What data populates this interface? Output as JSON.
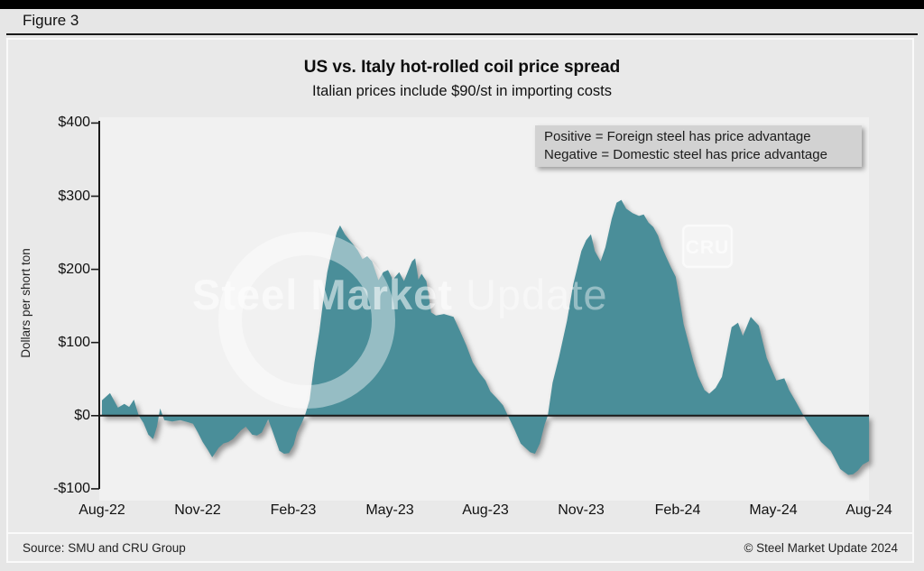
{
  "header": {
    "figure_label": "Figure 3"
  },
  "chart_data": {
    "type": "area",
    "title": "US vs. Italy hot-rolled coil price spread",
    "subtitle": "Italian prices include $90/st in importing costs",
    "ylabel": "Dollars per short ton",
    "ylim": [
      -100,
      400
    ],
    "baseline": 0,
    "grid": false,
    "fill_color": "#4a8e99",
    "annotation_line1": "Positive = Foreign steel has price advantage",
    "annotation_line2": "Negative = Domestic steel has price advantage",
    "ytick_labels": [
      "$400",
      "$300",
      "$200",
      "$100",
      "$0",
      "-$100"
    ],
    "ytick_values": [
      400,
      300,
      200,
      100,
      0,
      -100
    ],
    "xtick_labels": [
      "Aug-22",
      "Nov-22",
      "Feb-23",
      "May-23",
      "Aug-23",
      "Nov-23",
      "Feb-24",
      "May-24",
      "Aug-24"
    ],
    "x_unit": "months since Aug-2022",
    "series": [
      {
        "name": "US minus Italy HRC price spread, $/short ton",
        "points": [
          [
            0,
            21
          ],
          [
            0.25,
            31
          ],
          [
            0.5,
            11
          ],
          [
            0.7,
            16
          ],
          [
            0.85,
            12
          ],
          [
            1,
            22
          ],
          [
            1.15,
            0
          ],
          [
            1.3,
            -10
          ],
          [
            1.45,
            -26
          ],
          [
            1.6,
            -32
          ],
          [
            1.72,
            -15
          ],
          [
            1.82,
            10
          ],
          [
            1.95,
            -6
          ],
          [
            2.2,
            -8
          ],
          [
            2.45,
            -6
          ],
          [
            2.7,
            -9
          ],
          [
            2.85,
            -11
          ],
          [
            3,
            -23
          ],
          [
            3.15,
            -36
          ],
          [
            3.3,
            -46
          ],
          [
            3.45,
            -57
          ],
          [
            3.65,
            -44
          ],
          [
            3.8,
            -38
          ],
          [
            3.95,
            -36
          ],
          [
            4.1,
            -32
          ],
          [
            4.35,
            -20
          ],
          [
            4.5,
            -15
          ],
          [
            4.7,
            -26
          ],
          [
            4.85,
            -27
          ],
          [
            5,
            -23
          ],
          [
            5.2,
            -5
          ],
          [
            5.35,
            -23
          ],
          [
            5.55,
            -48
          ],
          [
            5.7,
            -52
          ],
          [
            5.85,
            -51
          ],
          [
            6,
            -40
          ],
          [
            6.1,
            -23
          ],
          [
            6.25,
            -10
          ],
          [
            6.35,
            0
          ],
          [
            6.5,
            22
          ],
          [
            6.65,
            73
          ],
          [
            6.8,
            115
          ],
          [
            6.92,
            156
          ],
          [
            7.05,
            196
          ],
          [
            7.2,
            226
          ],
          [
            7.35,
            251
          ],
          [
            7.45,
            260
          ],
          [
            7.6,
            248
          ],
          [
            7.75,
            240
          ],
          [
            7.9,
            232
          ],
          [
            8,
            226
          ],
          [
            8.15,
            214
          ],
          [
            8.3,
            218
          ],
          [
            8.45,
            211
          ],
          [
            8.65,
            185
          ],
          [
            8.8,
            196
          ],
          [
            8.95,
            199
          ],
          [
            9.1,
            186
          ],
          [
            9.3,
            196
          ],
          [
            9.45,
            184
          ],
          [
            9.7,
            211
          ],
          [
            9.8,
            215
          ],
          [
            9.9,
            186
          ],
          [
            10,
            194
          ],
          [
            10.15,
            184
          ],
          [
            10.3,
            141
          ],
          [
            10.45,
            137
          ],
          [
            10.7,
            139
          ],
          [
            11,
            135
          ],
          [
            11.2,
            116
          ],
          [
            11.4,
            96
          ],
          [
            11.6,
            73
          ],
          [
            11.8,
            59
          ],
          [
            12,
            48
          ],
          [
            12.15,
            33
          ],
          [
            12.35,
            24
          ],
          [
            12.55,
            14
          ],
          [
            12.7,
            0
          ],
          [
            12.9,
            -18
          ],
          [
            13.1,
            -38
          ],
          [
            13.4,
            -50
          ],
          [
            13.55,
            -52
          ],
          [
            13.7,
            -38
          ],
          [
            13.85,
            -12
          ],
          [
            13.95,
            0
          ],
          [
            14.1,
            45
          ],
          [
            14.3,
            80
          ],
          [
            14.55,
            130
          ],
          [
            14.75,
            180
          ],
          [
            15,
            225
          ],
          [
            15.15,
            240
          ],
          [
            15.3,
            248
          ],
          [
            15.42,
            225
          ],
          [
            15.6,
            211
          ],
          [
            15.75,
            230
          ],
          [
            15.95,
            269
          ],
          [
            16.1,
            291
          ],
          [
            16.25,
            295
          ],
          [
            16.4,
            283
          ],
          [
            16.6,
            277
          ],
          [
            16.8,
            273
          ],
          [
            16.95,
            275
          ],
          [
            17.1,
            264
          ],
          [
            17.25,
            258
          ],
          [
            17.4,
            246
          ],
          [
            17.5,
            232
          ],
          [
            17.65,
            217
          ],
          [
            17.8,
            203
          ],
          [
            17.95,
            190
          ],
          [
            18.1,
            152
          ],
          [
            18.2,
            125
          ],
          [
            18.35,
            100
          ],
          [
            18.5,
            75
          ],
          [
            18.65,
            54
          ],
          [
            18.85,
            35
          ],
          [
            19,
            30
          ],
          [
            19.2,
            38
          ],
          [
            19.4,
            53
          ],
          [
            19.7,
            121
          ],
          [
            19.9,
            127
          ],
          [
            20.05,
            109
          ],
          [
            20.3,
            135
          ],
          [
            20.55,
            123
          ],
          [
            20.8,
            79
          ],
          [
            21.1,
            48
          ],
          [
            21.35,
            51
          ],
          [
            21.5,
            35
          ],
          [
            21.7,
            20
          ],
          [
            21.95,
            0
          ],
          [
            22.25,
            -20
          ],
          [
            22.5,
            -36
          ],
          [
            22.65,
            -42
          ],
          [
            22.8,
            -48
          ],
          [
            23.1,
            -73
          ],
          [
            23.35,
            -81
          ],
          [
            23.5,
            -80
          ],
          [
            23.65,
            -75
          ],
          [
            23.8,
            -67
          ],
          [
            24,
            -62
          ]
        ]
      }
    ]
  },
  "watermark": {
    "brand_bold": "Steel Market",
    "brand_light": " Update",
    "cru": "CRU"
  },
  "footer": {
    "source": "Source: SMU and CRU Group",
    "copyright": "© Steel Market Update 2024"
  }
}
